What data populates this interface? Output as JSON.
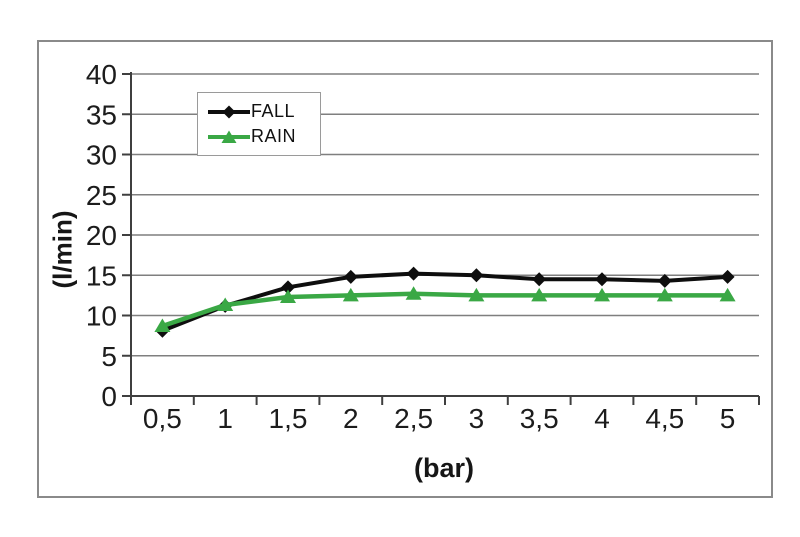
{
  "chart_data": {
    "type": "line",
    "title": "",
    "xlabel": "(bar)",
    "ylabel": "(l/min)",
    "x": [
      0.5,
      1,
      1.5,
      2,
      2.5,
      3,
      3.5,
      4,
      4.5,
      5
    ],
    "x_tick_labels": [
      "0,5",
      "1",
      "1,5",
      "2",
      "2,5",
      "3",
      "3,5",
      "4",
      "4,5",
      "5"
    ],
    "ylim": [
      0,
      40
    ],
    "y_tick_step": 5,
    "y_tick_labels": [
      "0",
      "5",
      "10",
      "15",
      "20",
      "25",
      "30",
      "35",
      "40"
    ],
    "grid": "horizontal-only",
    "legend_position": "top-left-inside",
    "series": [
      {
        "name": "FALL",
        "color": "#0e0e0e",
        "marker": "diamond",
        "values": [
          8.1,
          11.2,
          13.5,
          14.8,
          15.2,
          15.0,
          14.5,
          14.5,
          14.3,
          14.8
        ]
      },
      {
        "name": "RAIN",
        "color": "#3aa845",
        "marker": "triangle",
        "values": [
          8.7,
          11.3,
          12.3,
          12.5,
          12.7,
          12.5,
          12.5,
          12.5,
          12.5,
          12.5
        ]
      }
    ]
  },
  "colors": {
    "gridline": "#7f7f7f",
    "axis": "#3f3f3f",
    "frame_border": "#8a8a8a",
    "background": "#ffffff",
    "text": "#1c1c1c"
  }
}
